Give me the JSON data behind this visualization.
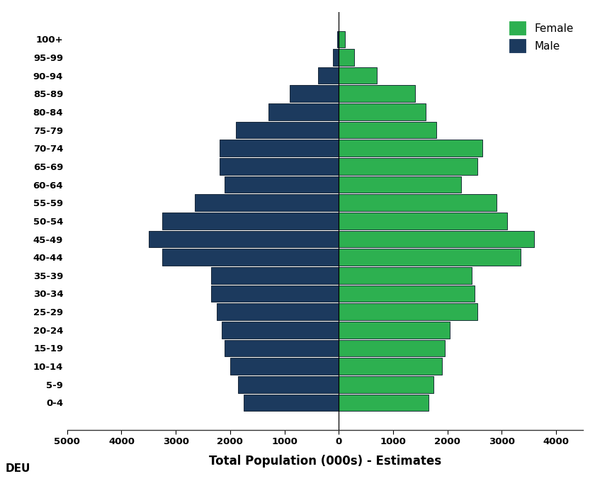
{
  "age_groups": [
    "0-4",
    "5-9",
    "10-14",
    "15-19",
    "20-24",
    "25-29",
    "30-34",
    "35-39",
    "40-44",
    "45-49",
    "50-54",
    "55-59",
    "60-64",
    "65-69",
    "70-74",
    "75-79",
    "80-84",
    "85-89",
    "90-94",
    "95-99",
    "100+"
  ],
  "male": [
    1750,
    1850,
    2000,
    2100,
    2150,
    2250,
    2350,
    2350,
    3250,
    3500,
    3250,
    2650,
    2100,
    2200,
    2200,
    1900,
    1300,
    900,
    380,
    110,
    25
  ],
  "female": [
    1650,
    1750,
    1900,
    1950,
    2050,
    2550,
    2500,
    2450,
    3350,
    3600,
    3100,
    2900,
    2250,
    2550,
    2650,
    1800,
    1600,
    1400,
    700,
    280,
    110
  ],
  "male_color": "#1c3a5e",
  "female_color": "#2db050",
  "xlabel": "Total Population (000s) - Estimates",
  "xlim_left": -5000,
  "xlim_right": 4500,
  "background_color": "none",
  "country_label": "DEU",
  "bar_edgecolor": "#0a1a2a",
  "bar_linewidth": 0.6,
  "xticks": [
    -5000,
    -4000,
    -3000,
    -2000,
    -1000,
    0,
    1000,
    2000,
    3000,
    4000
  ],
  "xtick_labels": [
    "5000",
    "4000",
    "3000",
    "2000",
    "1000",
    "0",
    "1000",
    "2000",
    "3000",
    "4000"
  ]
}
